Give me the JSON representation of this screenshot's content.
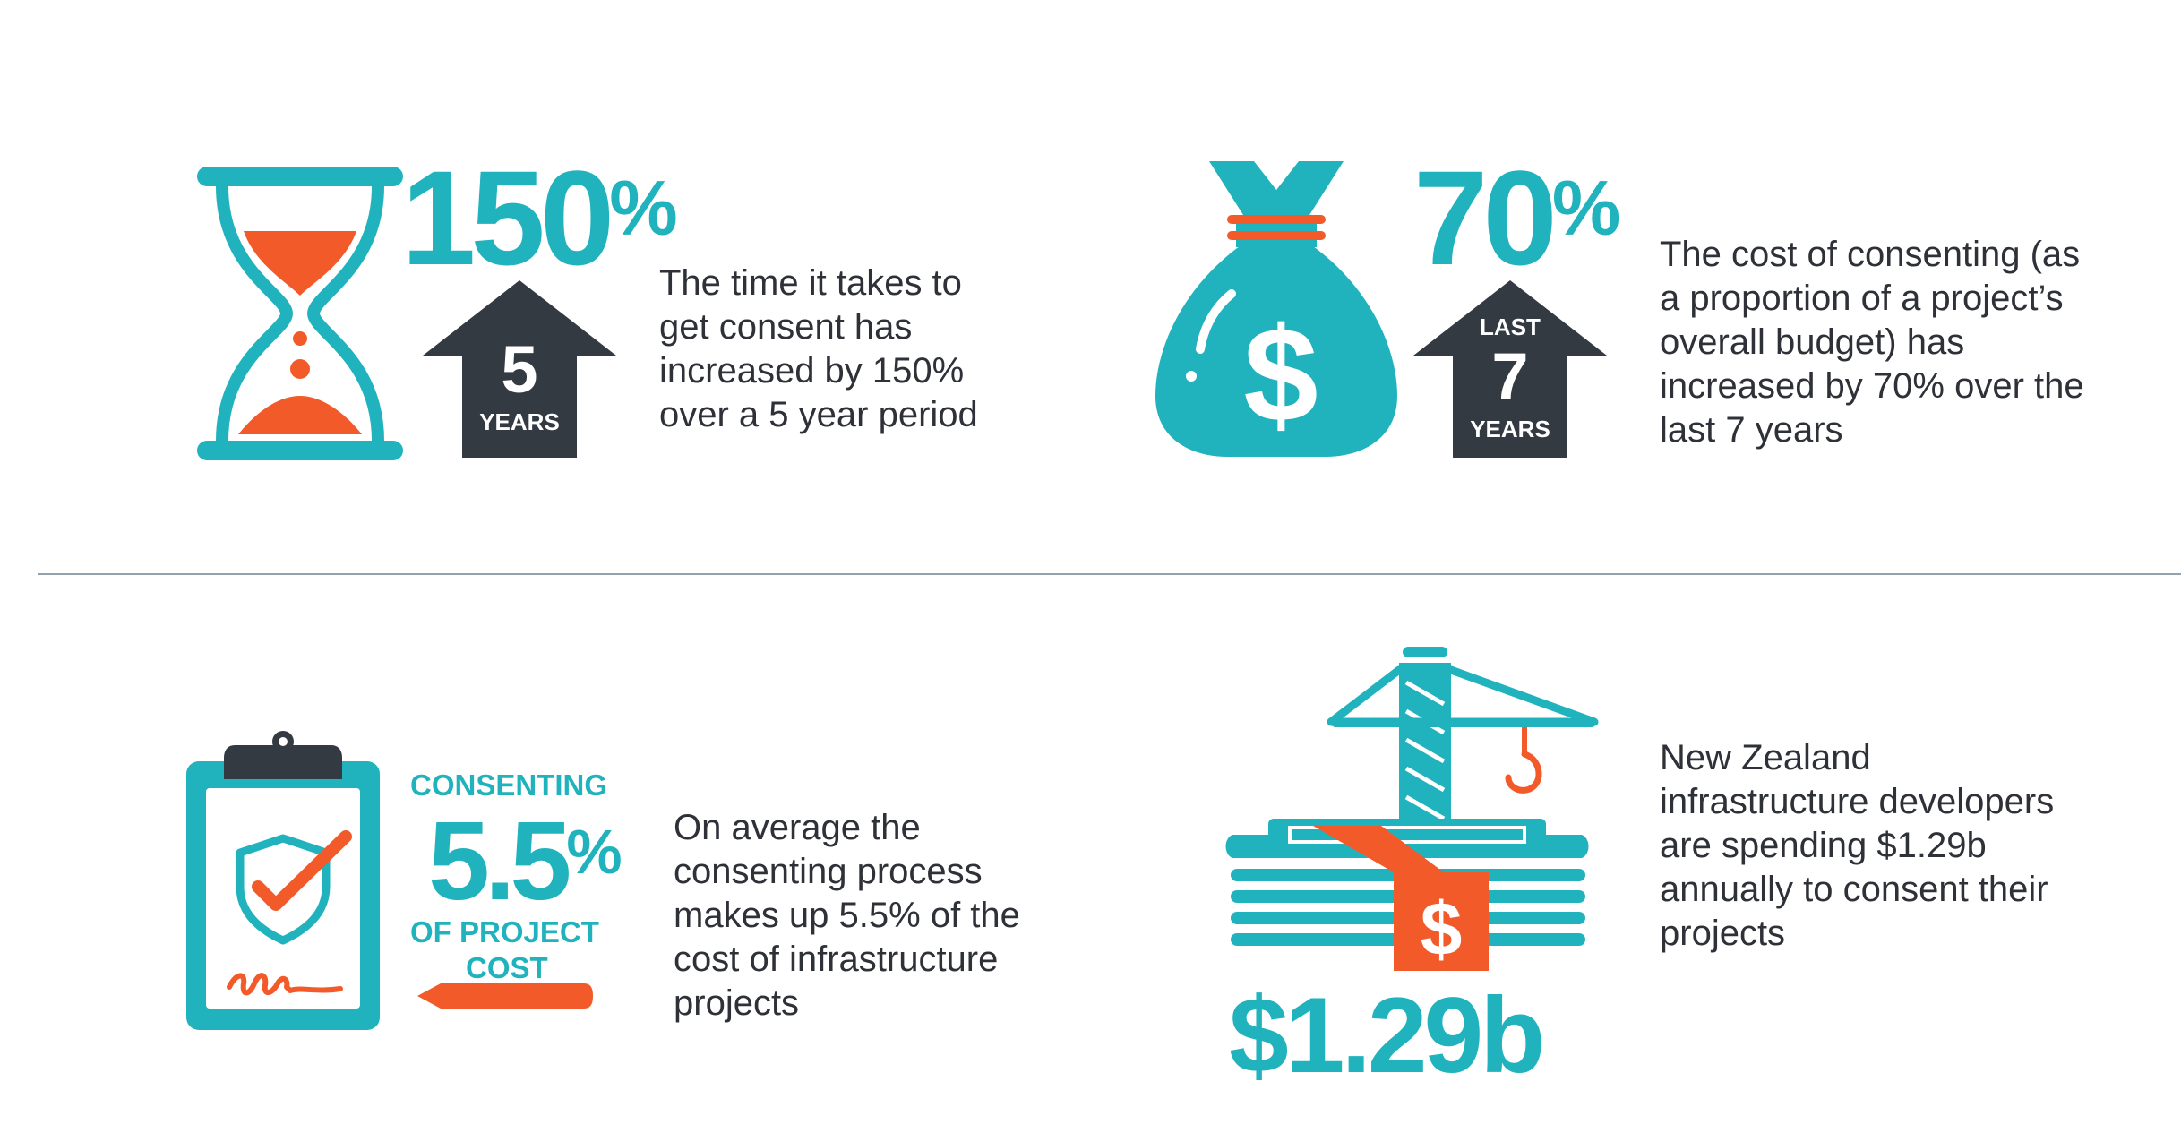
{
  "colors": {
    "teal": "#21b3bd",
    "orange": "#f25a2a",
    "dark": "#333a42",
    "divider": "#93a1ad",
    "text": "#2e3137"
  },
  "stat1": {
    "icon": "hourglass-icon",
    "number": "150",
    "percent": "%",
    "arrow_number": "5",
    "arrow_caption": "YEARS",
    "description": [
      "The time it takes to",
      "get consent has",
      "increased by 150%",
      "over a 5 year period"
    ]
  },
  "stat2": {
    "icon": "money-bag-icon",
    "bag_symbol": "$",
    "number": "70",
    "percent": "%",
    "arrow_top": "LAST",
    "arrow_number": "7",
    "arrow_caption": "YEARS",
    "description": [
      "The cost of consenting (as",
      "a proportion of a project’s",
      "overall budget) has",
      "increased by 70% over the",
      "last 7 years"
    ]
  },
  "stat3": {
    "icon": "clipboard-shield-icon",
    "top_label": "CONSENTING",
    "number": "5.5",
    "percent": "%",
    "bottom_label_1": "OF PROJECT",
    "bottom_label_2": "COST",
    "description": [
      "On average the",
      "consenting process",
      "makes up 5.5% of the",
      "cost of infrastructure",
      "projects"
    ]
  },
  "stat4": {
    "icon": "crane-money-icon",
    "tag_symbol": "$",
    "number": "$1.29b",
    "description": [
      "New Zealand",
      "infrastructure developers",
      "are spending $1.29b",
      "annually to consent their",
      "projects"
    ]
  }
}
